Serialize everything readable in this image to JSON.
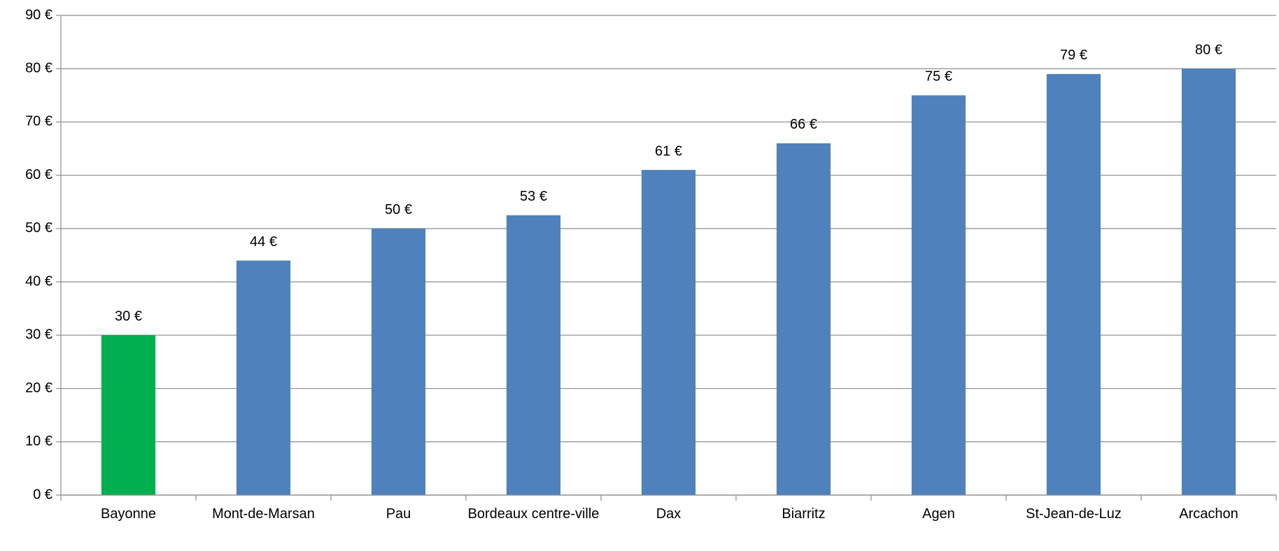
{
  "chart_data": {
    "type": "bar",
    "categories": [
      "Bayonne",
      "Mont-de-Marsan",
      "Pau",
      "Bordeaux centre-ville",
      "Dax",
      "Biarritz",
      "Agen",
      "St-Jean-de-Luz",
      "Arcachon"
    ],
    "values": [
      30,
      44,
      50,
      52.5,
      61,
      66,
      75,
      79,
      80
    ],
    "value_labels": [
      "30 €",
      "44 €",
      "50 €",
      "53 €",
      "61 €",
      "66 €",
      "75 €",
      "79 €",
      "80 €"
    ],
    "colors": [
      "#00b050",
      "#4f81bd",
      "#4f81bd",
      "#4f81bd",
      "#4f81bd",
      "#4f81bd",
      "#4f81bd",
      "#4f81bd",
      "#4f81bd"
    ],
    "ylim": [
      0,
      90
    ],
    "yticks": [
      {
        "value": 0,
        "label": "0 €"
      },
      {
        "value": 10,
        "label": "10 €"
      },
      {
        "value": 20,
        "label": "20 €"
      },
      {
        "value": 30,
        "label": "30 €"
      },
      {
        "value": 40,
        "label": "40 €"
      },
      {
        "value": 50,
        "label": "50 €"
      },
      {
        "value": 60,
        "label": "60 €"
      },
      {
        "value": 70,
        "label": "70 €"
      },
      {
        "value": 80,
        "label": "80 €"
      },
      {
        "value": 90,
        "label": "90 €"
      }
    ],
    "grid": true
  }
}
